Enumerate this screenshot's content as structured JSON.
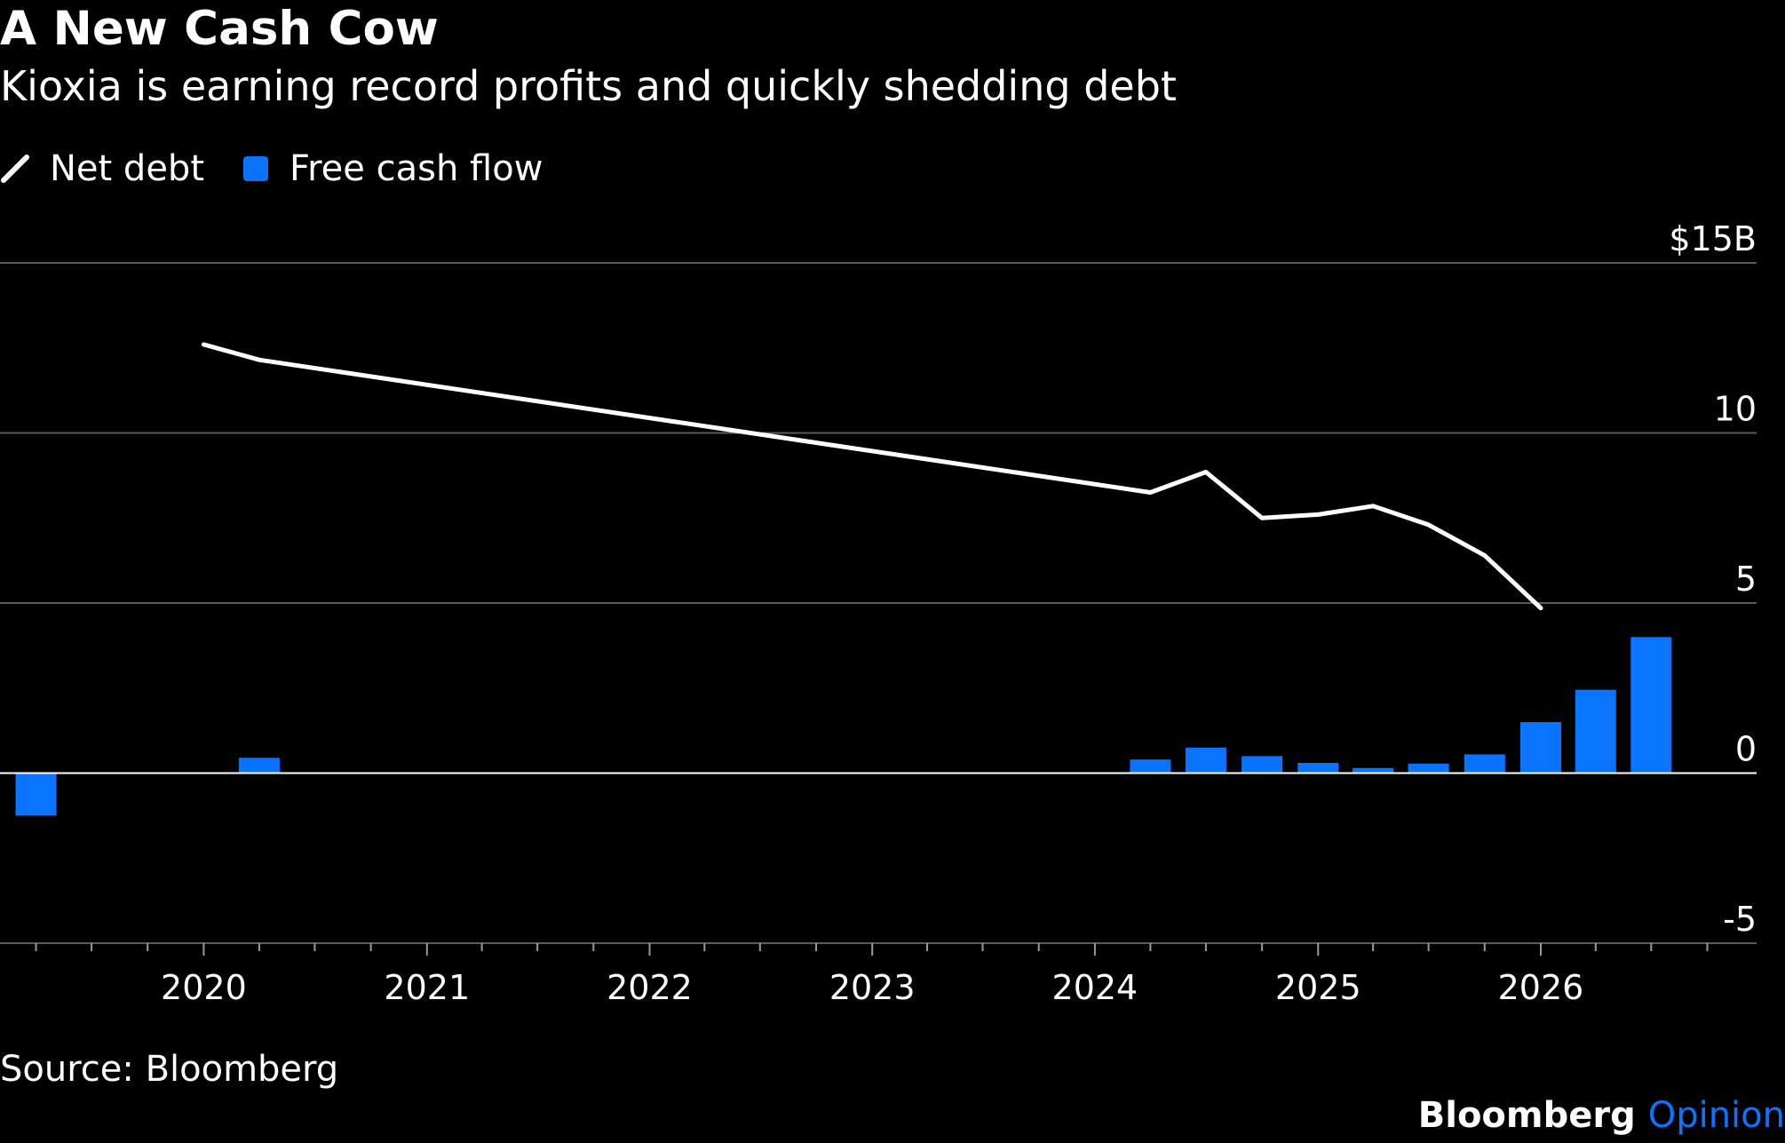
{
  "chart_data": {
    "type": "bar+line",
    "title": "A New Cash Cow",
    "subtitle": "Kioxia is earning record profits and quickly shedding debt",
    "legend": {
      "placement": "top-left",
      "entries": [
        {
          "name": "Net debt",
          "kind": "line",
          "color": "#ffffff"
        },
        {
          "name": "Free cash flow",
          "kind": "bar",
          "color": "#0a73ff"
        }
      ]
    },
    "x_axis": {
      "type": "date",
      "range": [
        "2019-02-01",
        "2026-12-31"
      ],
      "tick_labels": [
        "2020",
        "2021",
        "2022",
        "2023",
        "2024",
        "2025",
        "2026"
      ]
    },
    "y_axis": {
      "position": "right",
      "range": [
        -5,
        15
      ],
      "ticks": [
        {
          "value": 15,
          "label": "$15B"
        },
        {
          "value": 10,
          "label": "10"
        },
        {
          "value": 5,
          "label": "5"
        },
        {
          "value": 0,
          "label": "0"
        },
        {
          "value": -5,
          "label": "-5"
        }
      ],
      "grid": true
    },
    "series": [
      {
        "name": "Net debt",
        "type": "line",
        "color": "#ffffff",
        "points": [
          {
            "x": "2020-01-01",
            "y": 12.6
          },
          {
            "x": "2020-04-01",
            "y": 12.15
          },
          {
            "x": "2024-04-01",
            "y": 8.25
          },
          {
            "x": "2024-07-01",
            "y": 8.85
          },
          {
            "x": "2024-10-01",
            "y": 7.5
          },
          {
            "x": "2025-01-01",
            "y": 7.6
          },
          {
            "x": "2025-04-01",
            "y": 7.85
          },
          {
            "x": "2025-07-01",
            "y": 7.3
          },
          {
            "x": "2025-10-01",
            "y": 6.4
          },
          {
            "x": "2026-01-01",
            "y": 4.85
          }
        ]
      },
      {
        "name": "Free cash flow",
        "type": "bar",
        "color": "#0a73ff",
        "points": [
          {
            "x": "2019-04-01",
            "y": -1.25
          },
          {
            "x": "2020-04-01",
            "y": 0.45
          },
          {
            "x": "2024-04-01",
            "y": 0.4
          },
          {
            "x": "2024-07-01",
            "y": 0.75
          },
          {
            "x": "2024-10-01",
            "y": 0.5
          },
          {
            "x": "2025-01-01",
            "y": 0.3
          },
          {
            "x": "2025-04-01",
            "y": 0.15
          },
          {
            "x": "2025-07-01",
            "y": 0.28
          },
          {
            "x": "2025-10-01",
            "y": 0.55
          },
          {
            "x": "2026-01-01",
            "y": 1.5
          },
          {
            "x": "2026-04-01",
            "y": 2.45
          },
          {
            "x": "2026-07-01",
            "y": 4.0
          }
        ]
      }
    ]
  },
  "footer": {
    "source": "Source: Bloomberg",
    "brand_primary": "Bloomberg",
    "brand_secondary": "Opinion",
    "brand_secondary_color": "#0a73ff"
  }
}
